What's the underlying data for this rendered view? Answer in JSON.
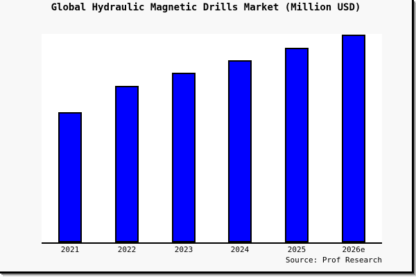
{
  "title": "Global Hydraulic Magnetic Drills Market (Million USD)",
  "source": "Source: Prof Research",
  "colors": {
    "bar_fill": "#0000ff",
    "bar_border": "#000000",
    "axis": "#000000",
    "page_background": "#f8f8f8",
    "plot_background": "#ffffff",
    "text": "#000000"
  },
  "chart_data": {
    "type": "bar",
    "title": "Global Hydraulic Magnetic Drills Market (Million USD)",
    "categories": [
      "2021",
      "2022",
      "2023",
      "2024",
      "2025",
      "2026e"
    ],
    "values": [
      62.7,
      75.3,
      81.7,
      87.7,
      93.7,
      100
    ],
    "xlabel": "",
    "ylabel": "",
    "ylim": [
      0,
      100
    ],
    "grid": false,
    "legend": false,
    "y_axis_ticks_visible": false,
    "source_note": "Source: Prof Research"
  }
}
